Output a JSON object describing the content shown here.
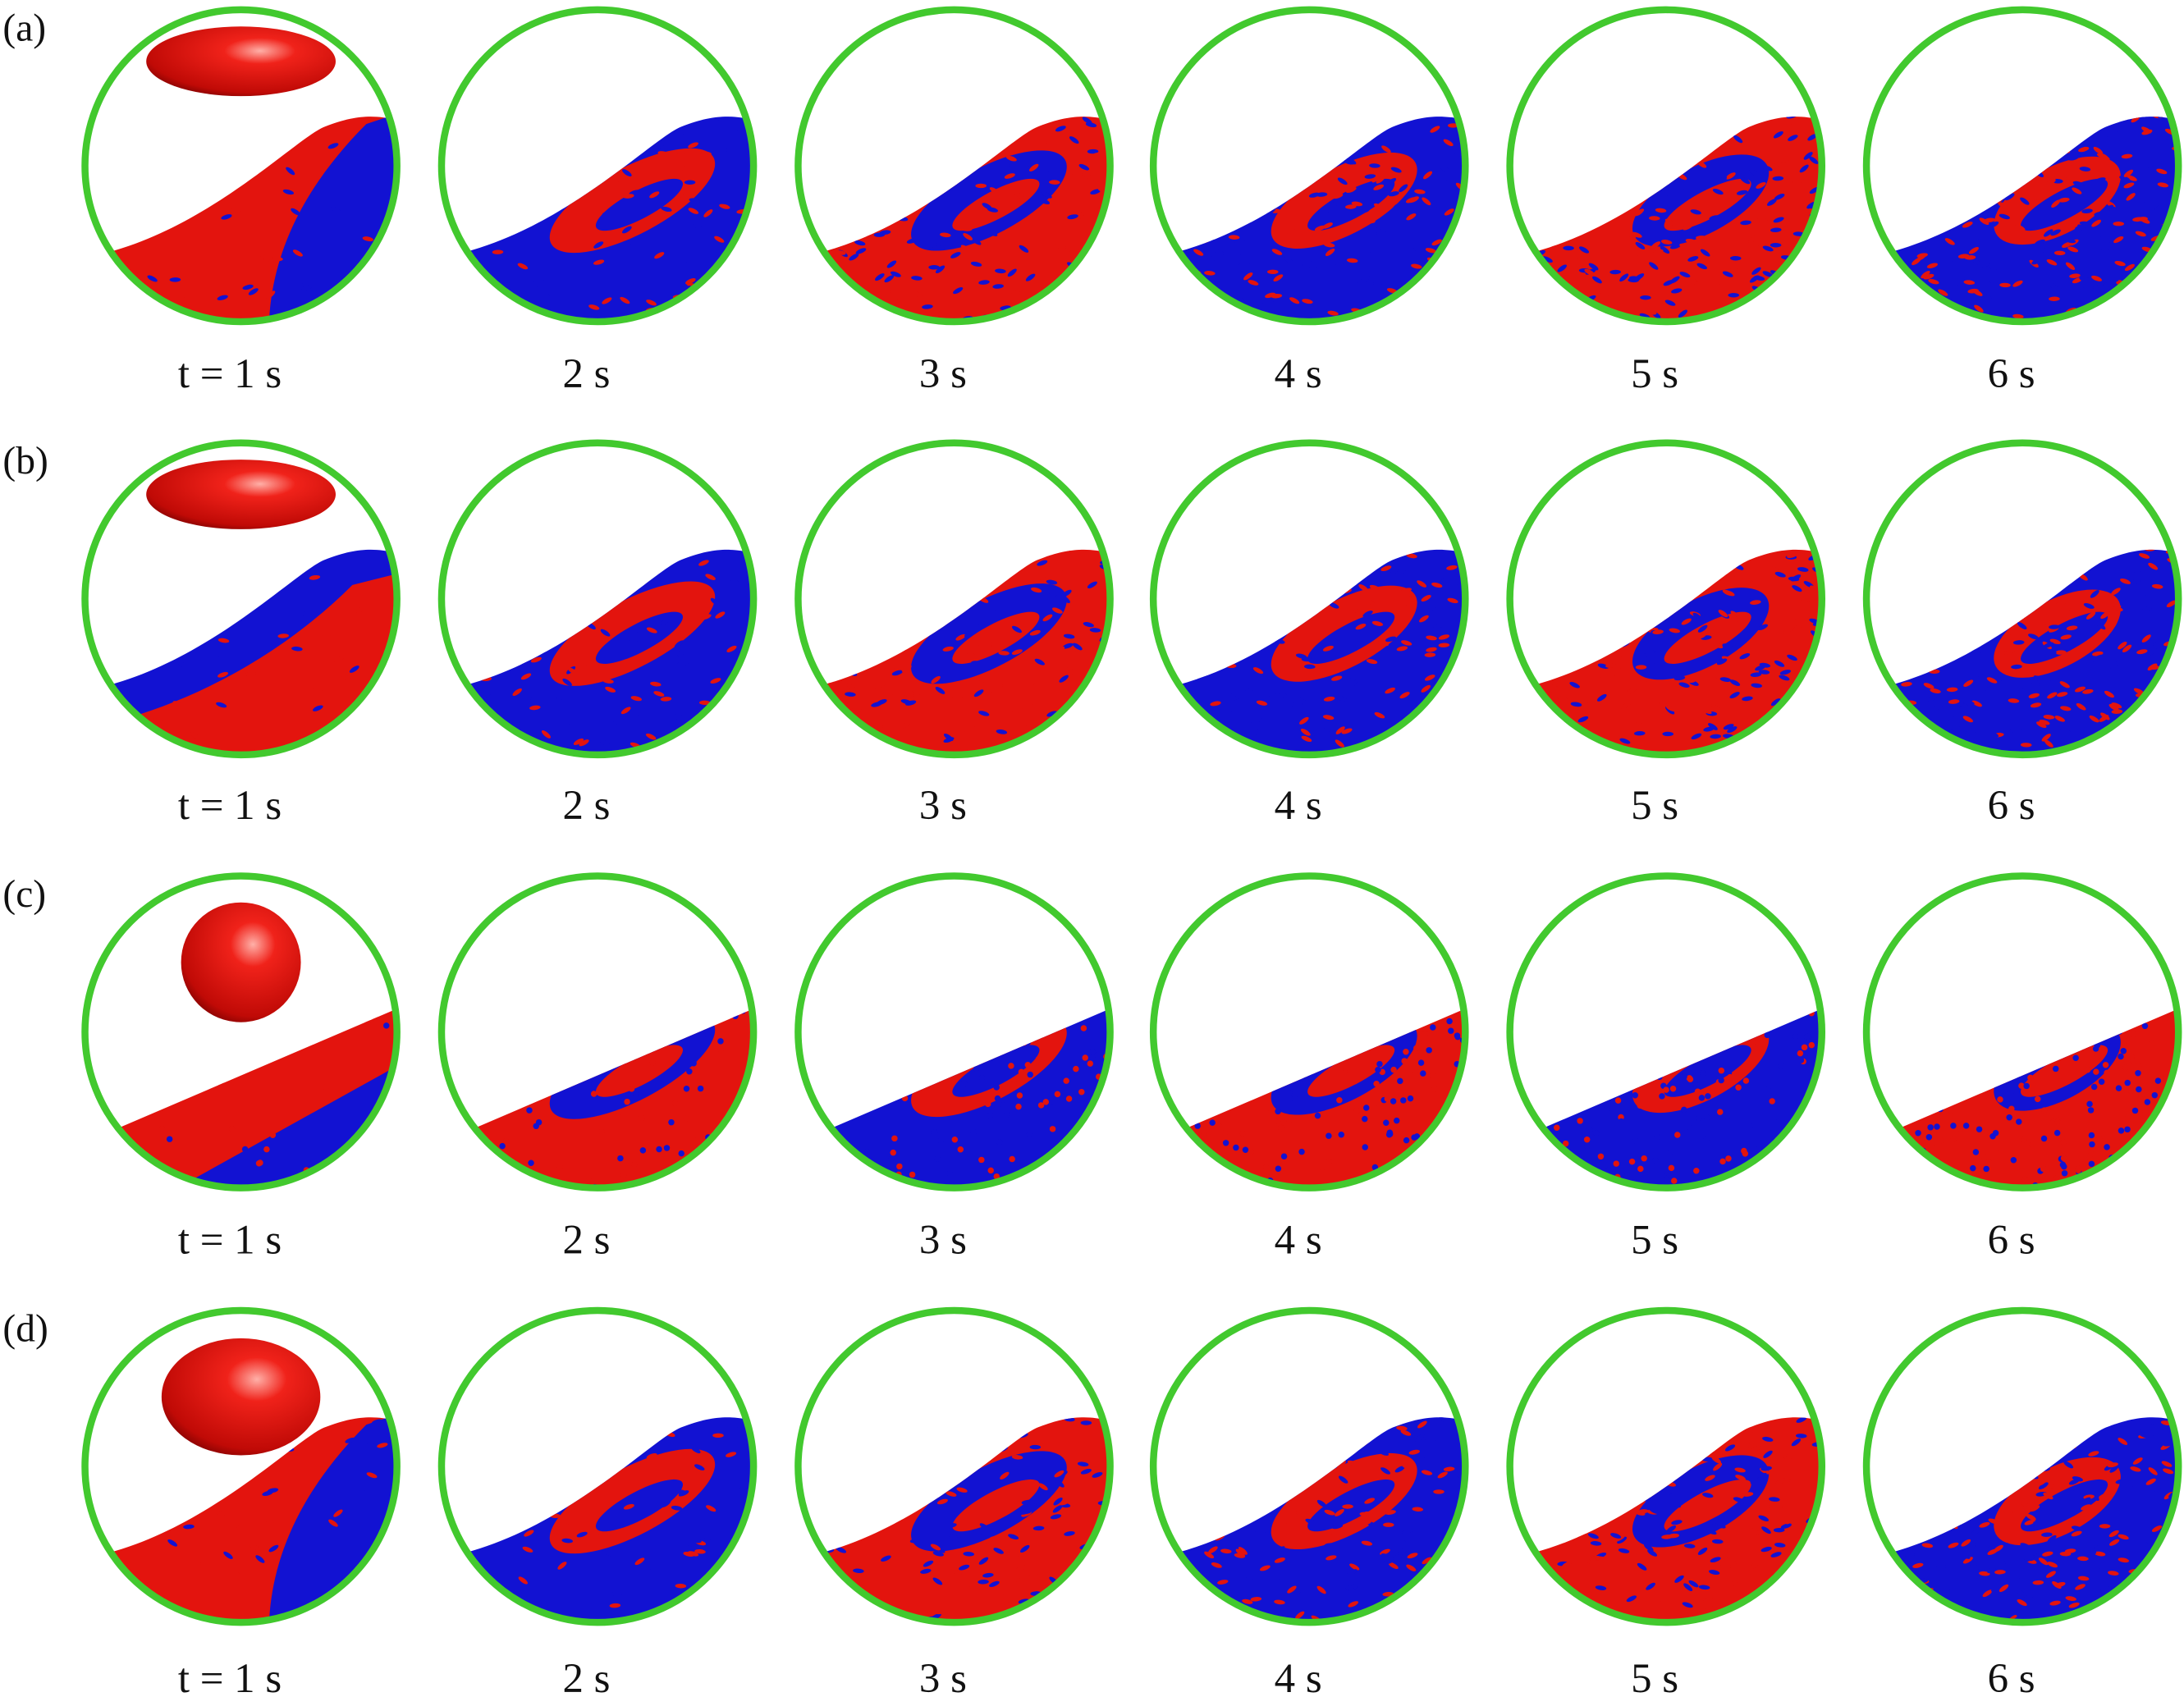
{
  "rows": [
    {
      "label": "(a)",
      "captions": [
        "t = 1 s",
        "2 s",
        "3 s",
        "4 s",
        "5 s",
        "6 s"
      ]
    },
    {
      "label": "(b)",
      "captions": [
        "t = 1 s",
        "2 s",
        "3 s",
        "4 s",
        "5 s",
        "6 s"
      ]
    },
    {
      "label": "(c)",
      "captions": [
        "t = 1 s",
        "2 s",
        "3 s",
        "4 s",
        "5 s",
        "6 s"
      ]
    },
    {
      "label": "(d)",
      "captions": [
        "t = 1 s",
        "2 s",
        "3 s",
        "4 s",
        "5 s",
        "6 s"
      ]
    }
  ]
}
